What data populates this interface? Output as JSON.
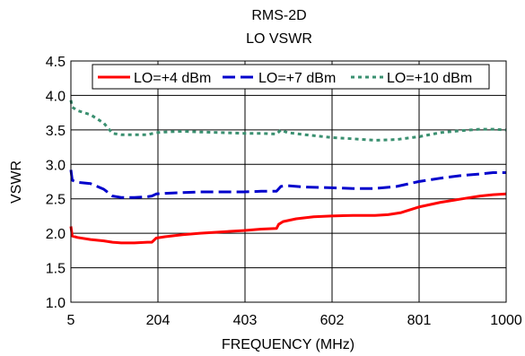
{
  "chart_data": {
    "type": "line",
    "title": "RMS-2D",
    "subtitle": "LO VSWR",
    "xlabel": "FREQUENCY (MHz)",
    "ylabel": "VSWR",
    "xlim": [
      5,
      1000
    ],
    "ylim": [
      1.0,
      4.5
    ],
    "x_ticks": [
      5,
      204,
      403,
      602,
      801,
      1000
    ],
    "x_tick_labels": [
      "5",
      "204",
      "403",
      "602",
      "801",
      "1000"
    ],
    "y_ticks": [
      1.0,
      1.5,
      2.0,
      2.5,
      3.0,
      3.5,
      4.0,
      4.5
    ],
    "y_tick_labels": [
      "1.0",
      "1.5",
      "2.0",
      "2.5",
      "3.0",
      "3.5",
      "4.0",
      "4.5"
    ],
    "grid": true,
    "legend_position": "top",
    "series": [
      {
        "name": "LO=+4 dBm",
        "color": "#ff0000",
        "dash": "solid",
        "x": [
          5,
          8,
          20,
          50,
          80,
          100,
          120,
          150,
          180,
          190,
          200,
          220,
          260,
          300,
          350,
          400,
          440,
          475,
          480,
          490,
          520,
          560,
          600,
          650,
          700,
          730,
          760,
          800,
          850,
          900,
          940,
          970,
          1000
        ],
        "y": [
          2.1,
          1.96,
          1.94,
          1.91,
          1.89,
          1.87,
          1.86,
          1.86,
          1.87,
          1.87,
          1.93,
          1.95,
          1.98,
          2.0,
          2.02,
          2.04,
          2.06,
          2.07,
          2.13,
          2.17,
          2.21,
          2.24,
          2.25,
          2.26,
          2.26,
          2.27,
          2.3,
          2.38,
          2.45,
          2.5,
          2.54,
          2.56,
          2.57
        ]
      },
      {
        "name": "LO=+7 dBm",
        "color": "#0000cc",
        "dash": "long",
        "x": [
          5,
          8,
          20,
          50,
          80,
          100,
          120,
          150,
          180,
          190,
          200,
          220,
          260,
          300,
          350,
          400,
          440,
          475,
          485,
          500,
          540,
          600,
          650,
          700,
          750,
          800,
          850,
          900,
          940,
          970,
          1000
        ],
        "y": [
          2.92,
          2.77,
          2.74,
          2.72,
          2.64,
          2.54,
          2.52,
          2.52,
          2.53,
          2.54,
          2.57,
          2.58,
          2.59,
          2.6,
          2.6,
          2.6,
          2.61,
          2.61,
          2.68,
          2.69,
          2.67,
          2.66,
          2.65,
          2.65,
          2.68,
          2.75,
          2.8,
          2.84,
          2.86,
          2.88,
          2.88
        ]
      },
      {
        "name": "LO=+10 dBm",
        "color": "#3a9070",
        "dash": "dotted",
        "x": [
          5,
          8,
          20,
          50,
          80,
          100,
          120,
          150,
          180,
          200,
          220,
          260,
          300,
          350,
          400,
          440,
          475,
          485,
          500,
          540,
          600,
          650,
          700,
          750,
          800,
          850,
          900,
          940,
          970,
          1000
        ],
        "y": [
          3.93,
          3.83,
          3.78,
          3.72,
          3.6,
          3.45,
          3.43,
          3.43,
          3.43,
          3.46,
          3.47,
          3.48,
          3.47,
          3.46,
          3.45,
          3.45,
          3.44,
          3.5,
          3.46,
          3.43,
          3.39,
          3.37,
          3.35,
          3.36,
          3.4,
          3.46,
          3.49,
          3.51,
          3.51,
          3.5
        ]
      }
    ]
  }
}
